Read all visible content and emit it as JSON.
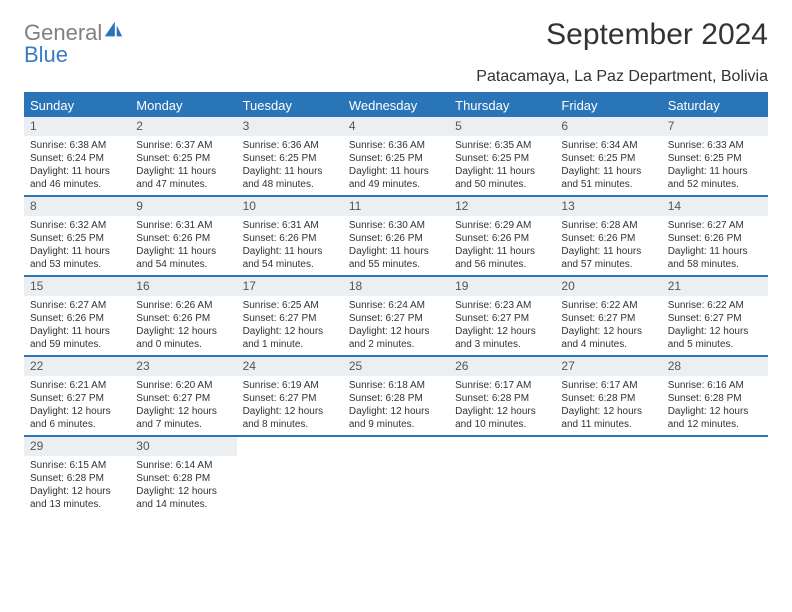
{
  "brand": {
    "word1": "General",
    "word2": "Blue",
    "color_general": "#808080",
    "color_blue": "#3a7cc0",
    "icon_color": "#2a74b8"
  },
  "title": "September 2024",
  "location": "Patacamaya, La Paz Department, Bolivia",
  "colors": {
    "header_bg": "#2a74b8",
    "header_text": "#ffffff",
    "daynum_bg": "#eceff1",
    "daynum_text": "#555555",
    "body_text": "#333333",
    "rule": "#2a74b8",
    "page_bg": "#ffffff"
  },
  "day_names": [
    "Sunday",
    "Monday",
    "Tuesday",
    "Wednesday",
    "Thursday",
    "Friday",
    "Saturday"
  ],
  "weeks": [
    [
      {
        "n": "1",
        "sr": "Sunrise: 6:38 AM",
        "ss": "Sunset: 6:24 PM",
        "dl1": "Daylight: 11 hours",
        "dl2": "and 46 minutes."
      },
      {
        "n": "2",
        "sr": "Sunrise: 6:37 AM",
        "ss": "Sunset: 6:25 PM",
        "dl1": "Daylight: 11 hours",
        "dl2": "and 47 minutes."
      },
      {
        "n": "3",
        "sr": "Sunrise: 6:36 AM",
        "ss": "Sunset: 6:25 PM",
        "dl1": "Daylight: 11 hours",
        "dl2": "and 48 minutes."
      },
      {
        "n": "4",
        "sr": "Sunrise: 6:36 AM",
        "ss": "Sunset: 6:25 PM",
        "dl1": "Daylight: 11 hours",
        "dl2": "and 49 minutes."
      },
      {
        "n": "5",
        "sr": "Sunrise: 6:35 AM",
        "ss": "Sunset: 6:25 PM",
        "dl1": "Daylight: 11 hours",
        "dl2": "and 50 minutes."
      },
      {
        "n": "6",
        "sr": "Sunrise: 6:34 AM",
        "ss": "Sunset: 6:25 PM",
        "dl1": "Daylight: 11 hours",
        "dl2": "and 51 minutes."
      },
      {
        "n": "7",
        "sr": "Sunrise: 6:33 AM",
        "ss": "Sunset: 6:25 PM",
        "dl1": "Daylight: 11 hours",
        "dl2": "and 52 minutes."
      }
    ],
    [
      {
        "n": "8",
        "sr": "Sunrise: 6:32 AM",
        "ss": "Sunset: 6:25 PM",
        "dl1": "Daylight: 11 hours",
        "dl2": "and 53 minutes."
      },
      {
        "n": "9",
        "sr": "Sunrise: 6:31 AM",
        "ss": "Sunset: 6:26 PM",
        "dl1": "Daylight: 11 hours",
        "dl2": "and 54 minutes."
      },
      {
        "n": "10",
        "sr": "Sunrise: 6:31 AM",
        "ss": "Sunset: 6:26 PM",
        "dl1": "Daylight: 11 hours",
        "dl2": "and 54 minutes."
      },
      {
        "n": "11",
        "sr": "Sunrise: 6:30 AM",
        "ss": "Sunset: 6:26 PM",
        "dl1": "Daylight: 11 hours",
        "dl2": "and 55 minutes."
      },
      {
        "n": "12",
        "sr": "Sunrise: 6:29 AM",
        "ss": "Sunset: 6:26 PM",
        "dl1": "Daylight: 11 hours",
        "dl2": "and 56 minutes."
      },
      {
        "n": "13",
        "sr": "Sunrise: 6:28 AM",
        "ss": "Sunset: 6:26 PM",
        "dl1": "Daylight: 11 hours",
        "dl2": "and 57 minutes."
      },
      {
        "n": "14",
        "sr": "Sunrise: 6:27 AM",
        "ss": "Sunset: 6:26 PM",
        "dl1": "Daylight: 11 hours",
        "dl2": "and 58 minutes."
      }
    ],
    [
      {
        "n": "15",
        "sr": "Sunrise: 6:27 AM",
        "ss": "Sunset: 6:26 PM",
        "dl1": "Daylight: 11 hours",
        "dl2": "and 59 minutes."
      },
      {
        "n": "16",
        "sr": "Sunrise: 6:26 AM",
        "ss": "Sunset: 6:26 PM",
        "dl1": "Daylight: 12 hours",
        "dl2": "and 0 minutes."
      },
      {
        "n": "17",
        "sr": "Sunrise: 6:25 AM",
        "ss": "Sunset: 6:27 PM",
        "dl1": "Daylight: 12 hours",
        "dl2": "and 1 minute."
      },
      {
        "n": "18",
        "sr": "Sunrise: 6:24 AM",
        "ss": "Sunset: 6:27 PM",
        "dl1": "Daylight: 12 hours",
        "dl2": "and 2 minutes."
      },
      {
        "n": "19",
        "sr": "Sunrise: 6:23 AM",
        "ss": "Sunset: 6:27 PM",
        "dl1": "Daylight: 12 hours",
        "dl2": "and 3 minutes."
      },
      {
        "n": "20",
        "sr": "Sunrise: 6:22 AM",
        "ss": "Sunset: 6:27 PM",
        "dl1": "Daylight: 12 hours",
        "dl2": "and 4 minutes."
      },
      {
        "n": "21",
        "sr": "Sunrise: 6:22 AM",
        "ss": "Sunset: 6:27 PM",
        "dl1": "Daylight: 12 hours",
        "dl2": "and 5 minutes."
      }
    ],
    [
      {
        "n": "22",
        "sr": "Sunrise: 6:21 AM",
        "ss": "Sunset: 6:27 PM",
        "dl1": "Daylight: 12 hours",
        "dl2": "and 6 minutes."
      },
      {
        "n": "23",
        "sr": "Sunrise: 6:20 AM",
        "ss": "Sunset: 6:27 PM",
        "dl1": "Daylight: 12 hours",
        "dl2": "and 7 minutes."
      },
      {
        "n": "24",
        "sr": "Sunrise: 6:19 AM",
        "ss": "Sunset: 6:27 PM",
        "dl1": "Daylight: 12 hours",
        "dl2": "and 8 minutes."
      },
      {
        "n": "25",
        "sr": "Sunrise: 6:18 AM",
        "ss": "Sunset: 6:28 PM",
        "dl1": "Daylight: 12 hours",
        "dl2": "and 9 minutes."
      },
      {
        "n": "26",
        "sr": "Sunrise: 6:17 AM",
        "ss": "Sunset: 6:28 PM",
        "dl1": "Daylight: 12 hours",
        "dl2": "and 10 minutes."
      },
      {
        "n": "27",
        "sr": "Sunrise: 6:17 AM",
        "ss": "Sunset: 6:28 PM",
        "dl1": "Daylight: 12 hours",
        "dl2": "and 11 minutes."
      },
      {
        "n": "28",
        "sr": "Sunrise: 6:16 AM",
        "ss": "Sunset: 6:28 PM",
        "dl1": "Daylight: 12 hours",
        "dl2": "and 12 minutes."
      }
    ],
    [
      {
        "n": "29",
        "sr": "Sunrise: 6:15 AM",
        "ss": "Sunset: 6:28 PM",
        "dl1": "Daylight: 12 hours",
        "dl2": "and 13 minutes."
      },
      {
        "n": "30",
        "sr": "Sunrise: 6:14 AM",
        "ss": "Sunset: 6:28 PM",
        "dl1": "Daylight: 12 hours",
        "dl2": "and 14 minutes."
      },
      null,
      null,
      null,
      null,
      null
    ]
  ]
}
